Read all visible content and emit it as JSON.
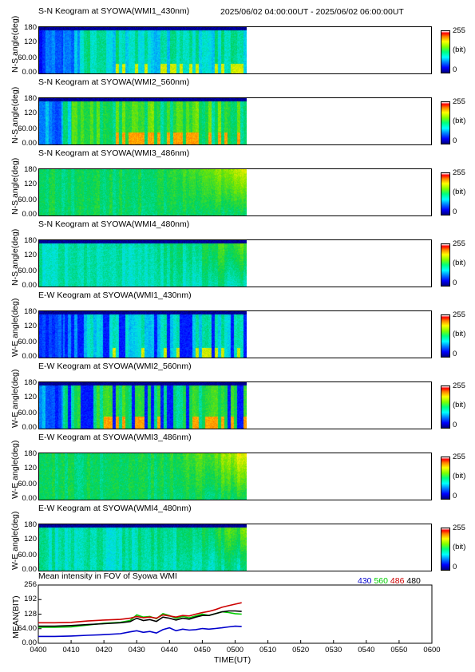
{
  "header": {
    "date_range": "2025/06/02 04:00:00UT - 2025/06/02 06:00:00UT"
  },
  "panels": [
    {
      "title": "S-N Keogram at SYOWA(WMI1_430nm)",
      "ylabel": "N-S angle(deg)",
      "colorbar": "430-sn"
    },
    {
      "title": "S-N Keogram at SYOWA(WMI2_560nm)",
      "ylabel": "N-S angle(deg)",
      "colorbar": "560-sn"
    },
    {
      "title": "S-N Keogram at SYOWA(WMI3_486nm)",
      "ylabel": "N-S angle(deg)",
      "colorbar": "486-sn"
    },
    {
      "title": "S-N Keogram at SYOWA(WMI4_480nm)",
      "ylabel": "N-S angle(deg)",
      "colorbar": "480-sn"
    },
    {
      "title": "E-W Keogram at SYOWA(WMI1_430nm)",
      "ylabel": "W-E angle(deg)",
      "colorbar": "430-ew"
    },
    {
      "title": "E-W Keogram at SYOWA(WMI2_560nm)",
      "ylabel": "W-E angle(deg)",
      "colorbar": "560-ew"
    },
    {
      "title": "E-W Keogram at SYOWA(WMI3_486nm)",
      "ylabel": "W-E angle(deg)",
      "colorbar": "486-ew"
    },
    {
      "title": "E-W Keogram at SYOWA(WMI4_480nm)",
      "ylabel": "W-E angle(deg)",
      "colorbar": "480-ew"
    }
  ],
  "keogram_yticks": [
    "180",
    "120",
    "60.00",
    "0.00"
  ],
  "colorbar": {
    "max": "255",
    "unit": "(bit)",
    "min": "0"
  },
  "chart_data": {
    "type": "line",
    "title": "Mean intensity in FOV of Syowa WMI",
    "xlabel": "TIME(UT)",
    "ylabel": "MEAN(BIT)",
    "x_ticks": [
      "0400",
      "0410",
      "0420",
      "0430",
      "0440",
      "0450",
      "0500",
      "0510",
      "0520",
      "0530",
      "0540",
      "0550",
      "0600"
    ],
    "y_ticks": [
      "256",
      "192",
      "128",
      "64.00",
      "0.00"
    ],
    "xlim": [
      0,
      120
    ],
    "ylim": [
      0,
      256
    ],
    "x_minutes": [
      0,
      5,
      10,
      15,
      20,
      25,
      28,
      30,
      32,
      34,
      36,
      38,
      40,
      42,
      44,
      46,
      48,
      50,
      52,
      54,
      56,
      58,
      60,
      62
    ],
    "series": [
      {
        "name": "430",
        "color": "#0000cc",
        "values": [
          30,
          30,
          32,
          35,
          38,
          42,
          50,
          55,
          48,
          52,
          45,
          60,
          68,
          55,
          62,
          58,
          60,
          65,
          62,
          65,
          68,
          72,
          75,
          74
        ]
      },
      {
        "name": "560",
        "color": "#00cc00",
        "values": [
          70,
          70,
          72,
          80,
          88,
          92,
          100,
          125,
          115,
          118,
          108,
          130,
          122,
          110,
          118,
          112,
          120,
          128,
          122,
          130,
          138,
          135,
          130,
          128
        ]
      },
      {
        "name": "486",
        "color": "#cc0000",
        "values": [
          90,
          90,
          92,
          98,
          102,
          105,
          110,
          118,
          112,
          115,
          110,
          125,
          120,
          115,
          122,
          120,
          128,
          135,
          140,
          148,
          158,
          165,
          172,
          178
        ]
      },
      {
        "name": "480",
        "color": "#000000",
        "values": [
          75,
          75,
          78,
          82,
          86,
          90,
          95,
          110,
          100,
          104,
          96,
          115,
          110,
          102,
          110,
          106,
          115,
          122,
          122,
          130,
          138,
          142,
          142,
          140
        ]
      }
    ]
  }
}
